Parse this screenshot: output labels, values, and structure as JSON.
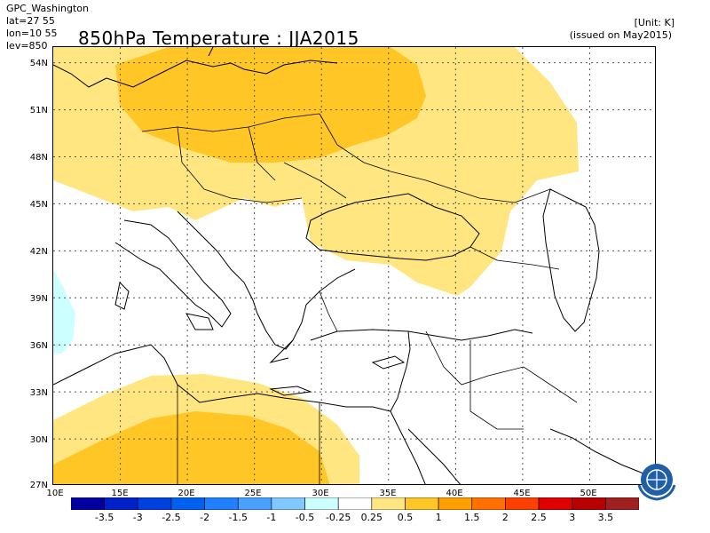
{
  "header": {
    "center": "GPC_Washington",
    "lat": "lat=27 55",
    "lon": "lon=10 55",
    "lev": "lev=850",
    "title": "850hPa Temperature : JJA2015",
    "unit": "[Unit: K]",
    "issued": "(issued on May2015)"
  },
  "map": {
    "lat_range": [
      27,
      55
    ],
    "lon_range": [
      10,
      55
    ],
    "lat_ticks": [
      "54N",
      "51N",
      "48N",
      "45N",
      "42N",
      "39N",
      "36N",
      "33N",
      "30N",
      "27N"
    ],
    "lon_ticks": [
      "10E",
      "15E",
      "20E",
      "25E",
      "30E",
      "35E",
      "40E",
      "45E",
      "50E"
    ],
    "shading": [
      {
        "category": "0.25 to 0.5",
        "color": "#ffe680",
        "region": "central and eastern Europe, Black Sea"
      },
      {
        "category": "0.5 to 1",
        "color": "#ffc626",
        "region": "Poland and Germany"
      },
      {
        "category": "0.25 to 0.5",
        "color": "#ffe680",
        "region": "Libya"
      },
      {
        "category": "0.5 to 1",
        "color": "#ffc626",
        "region": "southern Libya"
      },
      {
        "category": "-0.5 to -0.25",
        "color": "#ccffff",
        "region": "western edge near Tunisia"
      }
    ]
  },
  "legend": {
    "labels": [
      "-3.5",
      "-3",
      "-2.5",
      "-2",
      "-1.5",
      "-1",
      "-0.5",
      "-0.25",
      "0.25",
      "0.5",
      "1",
      "1.5",
      "2",
      "2.5",
      "3",
      "3.5"
    ],
    "colors": [
      "#0000a0",
      "#0020c8",
      "#0040e0",
      "#0060f0",
      "#2080ff",
      "#4aa0ff",
      "#80c8ff",
      "#ccffff",
      "#ffffff",
      "#ffe680",
      "#ffc626",
      "#ffa000",
      "#ff7000",
      "#ff4000",
      "#e00000",
      "#b80000",
      "#a02020"
    ]
  },
  "logo": {
    "name": "wmo-logo-icon"
  }
}
